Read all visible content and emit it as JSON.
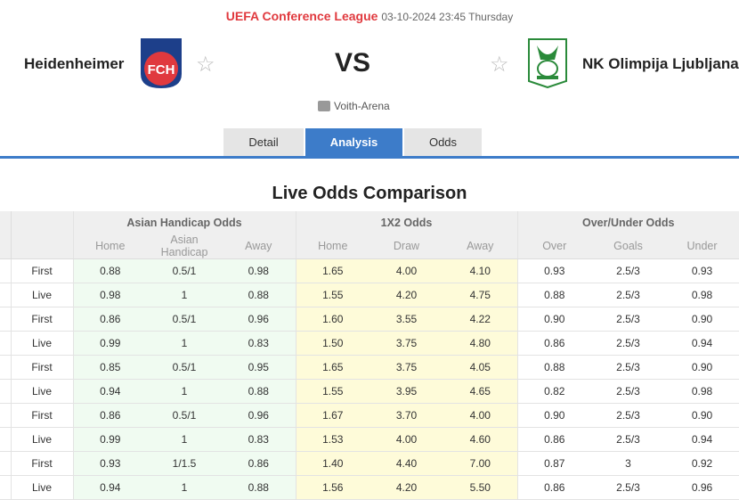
{
  "header": {
    "league": "UEFA Conference League",
    "datetime": "03-10-2024 23:45 Thursday",
    "home_team": "Heidenheimer",
    "away_team": "NK Olimpija Ljubljana",
    "vs": "VS",
    "venue": "Voith-Arena",
    "home_logo_text": "FCH"
  },
  "tabs": [
    {
      "label": "Detail"
    },
    {
      "label": "Analysis",
      "active": true
    },
    {
      "label": "Odds"
    }
  ],
  "section_title": "Live Odds Comparison",
  "table": {
    "groups": [
      "Asian Handicap Odds",
      "1X2 Odds",
      "Over/Under Odds"
    ],
    "subheaders": [
      "Home",
      "Asian Handicap",
      "Away",
      "Home",
      "Draw",
      "Away",
      "Over",
      "Goals",
      "Under"
    ],
    "rows": [
      [
        "First",
        "0.88",
        "0.5/1",
        "0.98",
        "1.65",
        "4.00",
        "4.10",
        "0.93",
        "2.5/3",
        "0.93"
      ],
      [
        "Live",
        "0.98",
        "1",
        "0.88",
        "1.55",
        "4.20",
        "4.75",
        "0.88",
        "2.5/3",
        "0.98"
      ],
      [
        "First",
        "0.86",
        "0.5/1",
        "0.96",
        "1.60",
        "3.55",
        "4.22",
        "0.90",
        "2.5/3",
        "0.90"
      ],
      [
        "Live",
        "0.99",
        "1",
        "0.83",
        "1.50",
        "3.75",
        "4.80",
        "0.86",
        "2.5/3",
        "0.94"
      ],
      [
        "First",
        "0.85",
        "0.5/1",
        "0.95",
        "1.65",
        "3.75",
        "4.05",
        "0.88",
        "2.5/3",
        "0.90"
      ],
      [
        "Live",
        "0.94",
        "1",
        "0.88",
        "1.55",
        "3.95",
        "4.65",
        "0.82",
        "2.5/3",
        "0.98"
      ],
      [
        "First",
        "0.86",
        "0.5/1",
        "0.96",
        "1.67",
        "3.70",
        "4.00",
        "0.90",
        "2.5/3",
        "0.90"
      ],
      [
        "Live",
        "0.99",
        "1",
        "0.83",
        "1.53",
        "4.00",
        "4.60",
        "0.86",
        "2.5/3",
        "0.94"
      ],
      [
        "First",
        "0.93",
        "1/1.5",
        "0.86",
        "1.40",
        "4.40",
        "7.00",
        "0.87",
        "3",
        "0.92"
      ],
      [
        "Live",
        "0.94",
        "1",
        "0.88",
        "1.56",
        "4.20",
        "5.50",
        "0.86",
        "2.5/3",
        "0.96"
      ]
    ]
  },
  "colors": {
    "league": "#e0393e",
    "accent": "#3d7cc9",
    "ah_bg": "#f0fbf1",
    "x2_bg": "#fefbd9"
  }
}
